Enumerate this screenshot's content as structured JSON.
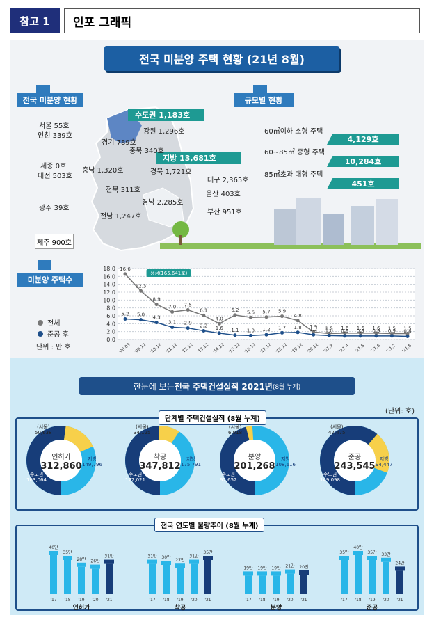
{
  "header": {
    "badge": "참고 1",
    "title": "인포 그래픽"
  },
  "top_banner": "전국 미분양 주택 현황 (21년 8월)",
  "tags": {
    "regional": "전국 미분양 현황",
    "scale": "규모별 현황",
    "count": "미분양 주택수"
  },
  "regions": {
    "capital_band": "수도권 1,183호",
    "local_band": "지방 13,681호",
    "seoul": "서울 55호",
    "incheon": "인천 339호",
    "gyeonggi": "경기 789호",
    "gangwon": "강원 1,296호",
    "chungbuk": "충북 340호",
    "sejong": "세종 0호",
    "chungnam": "충남 1,320호",
    "daejeon": "대전 503호",
    "gyeongbuk": "경북 1,721호",
    "daegu": "대구 2,365호",
    "jeonbuk": "전북 311호",
    "ulsan": "울산 403호",
    "gyeongnam": "경남 2,285호",
    "gwangju": "광주 39호",
    "jeonnam": "전남 1,247호",
    "busan": "부산 951호",
    "jeju": "제주 900호"
  },
  "scale": [
    {
      "label": "60㎡이하 소형 주택",
      "value": "4,129호"
    },
    {
      "label": "60~85㎡ 중형 주택",
      "value": "10,284호"
    },
    {
      "label": "85㎡초과 대형 주택",
      "value": "451호"
    }
  ],
  "legend": {
    "total": "전체",
    "completed": "준공 후",
    "unit": "단위 : 만 호"
  },
  "peak_label": "정점(165,641호)",
  "chart_data": {
    "type": "line",
    "categories": [
      "'08.03",
      "'09.12",
      "'10.12",
      "'11.12",
      "'12.12",
      "'13.12",
      "'14.12",
      "'15.12",
      "'16.12",
      "'17.12",
      "'18.12",
      "'19.12",
      "'20.12",
      "'21.3",
      "'21.4",
      "'21.5",
      "'21.6",
      "'21.7",
      "'21.8"
    ],
    "series": [
      {
        "name": "전체",
        "values": [
          16.6,
          12.3,
          8.9,
          7.0,
          7.5,
          6.1,
          4.0,
          6.2,
          5.6,
          5.7,
          5.9,
          4.8,
          1.9,
          1.5,
          1.6,
          1.6,
          1.6,
          1.5,
          1.5
        ]
      },
      {
        "name": "준공 후",
        "values": [
          5.2,
          5.0,
          4.3,
          3.1,
          2.9,
          2.2,
          1.6,
          1.1,
          1.0,
          1.2,
          1.7,
          1.8,
          1.2,
          1.0,
          0.9,
          0.9,
          0.9,
          0.9,
          0.8
        ]
      }
    ],
    "yticks": [
      "0.0",
      "2.0",
      "4.0",
      "6.0",
      "8.0",
      "10.0",
      "12.0",
      "14.0",
      "16.0",
      "18.0"
    ],
    "ylim": [
      0,
      18
    ]
  },
  "construction": {
    "banner_pre": "한눈에 보는 ",
    "banner_bold": "전국 주택건설실적 2021년",
    "banner_post": " (8월 누계)",
    "unit": "(단위: 호)",
    "stage_title": "단계별 주택건설실적 (8월 누계)",
    "trend_title": "전국 연도별 물량추이 (8월 누계)",
    "donuts": [
      {
        "name": "인허가",
        "total": "312,860",
        "seoul_label": "(서울)",
        "seoul": "50,638",
        "capital_label": "수도권",
        "capital": "163,064",
        "local_label": "지방",
        "local": "149,796",
        "capital_share": 0.521,
        "seoul_share": 0.162
      },
      {
        "name": "착공",
        "total": "347,812",
        "seoul_label": "(서울)",
        "seoul": "34,125",
        "capital_label": "수도권",
        "capital": "172,021",
        "local_label": "지방",
        "local": "175,791",
        "capital_share": 0.495,
        "seoul_share": 0.098
      },
      {
        "name": "분양",
        "total": "201,268",
        "seoul_label": "(서울)",
        "seoul": "6,018",
        "capital_label": "수도권",
        "capital": "92,652",
        "local_label": "지방",
        "local": "108,616",
        "capital_share": 0.46,
        "seoul_share": 0.03
      },
      {
        "name": "준공",
        "total": "243,545",
        "seoul_label": "(서울)",
        "seoul": "47,475",
        "capital_label": "수도권",
        "capital": "149,098",
        "local_label": "지방",
        "local": "94,447",
        "capital_share": 0.612,
        "seoul_share": 0.195
      }
    ],
    "trends": [
      {
        "name": "인허가",
        "years": [
          "'17",
          "'18",
          "'19",
          "'20",
          "'21"
        ],
        "values": [
          40,
          35,
          28,
          26,
          31
        ],
        "labels": [
          "40만",
          "35만",
          "28만",
          "26만",
          "31만"
        ]
      },
      {
        "name": "착공",
        "years": [
          "'17",
          "'18",
          "'19",
          "'20",
          "'21"
        ],
        "values": [
          31,
          30,
          27,
          31,
          35
        ],
        "labels": [
          "31만",
          "30만",
          "27만",
          "31만",
          "35만"
        ]
      },
      {
        "name": "분양",
        "years": [
          "'17",
          "'18",
          "'19",
          "'20",
          "'21"
        ],
        "values": [
          19,
          19,
          19,
          21,
          20
        ],
        "labels": [
          "19만",
          "19만",
          "19만",
          "21만",
          "20만"
        ]
      },
      {
        "name": "준공",
        "years": [
          "'17",
          "'18",
          "'19",
          "'20",
          "'21"
        ],
        "values": [
          35,
          40,
          35,
          33,
          24
        ],
        "labels": [
          "35만",
          "40만",
          "35만",
          "33만",
          "24만"
        ]
      }
    ]
  },
  "colors": {
    "navy": "#1e4f8a",
    "teal": "#1e9a93",
    "cyan": "#29b6e8",
    "yellow": "#f7d04a",
    "dark": "#173d79"
  }
}
